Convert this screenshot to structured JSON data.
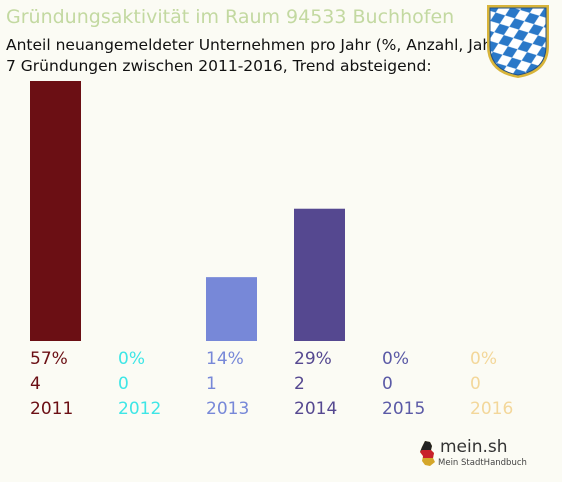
{
  "chart_data": {
    "type": "bar",
    "title": "Gründungsaktivität im Raum 94533 Buchhofen",
    "subtitle_lines": [
      "Anteil neuangemeldeter Unternehmen pro Jahr (%, Anzahl, Jahr)",
      "7 Gründungen zwischen 2011-2016, Trend absteigend:"
    ],
    "categories": [
      "2011",
      "2012",
      "2013",
      "2014",
      "2015",
      "2016"
    ],
    "values": [
      57,
      0,
      14,
      29,
      0,
      0
    ],
    "percent_labels": [
      "57%",
      "0%",
      "14%",
      "29%",
      "0%",
      "0%"
    ],
    "count_labels": [
      "4",
      "0",
      "1",
      "2",
      "0",
      "0"
    ],
    "colors": [
      "#6b0f14",
      "#3ee6e6",
      "#7788d8",
      "#554890",
      "#5b5aa6",
      "#f3d79a"
    ],
    "ylim": [
      0,
      57
    ],
    "grid": false,
    "legend": "none"
  },
  "branding": {
    "logo_text": "mein.sh",
    "logo_tagline": "Mein StadtHandbuch"
  }
}
